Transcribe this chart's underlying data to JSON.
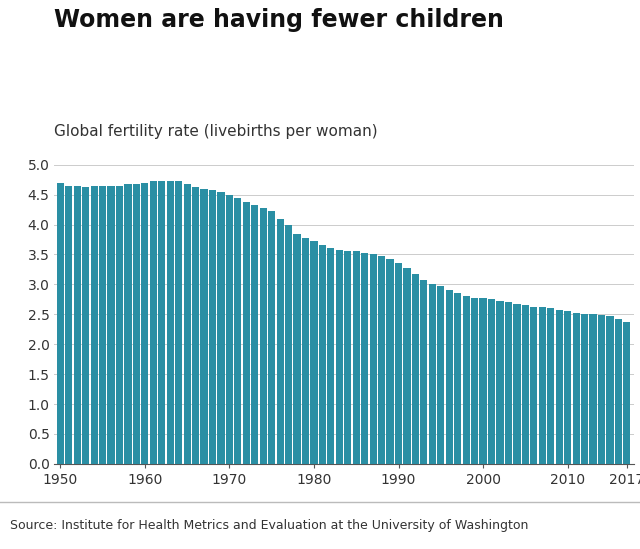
{
  "title": "Women are having fewer children",
  "subtitle": "Global fertility rate (livebirths per woman)",
  "source": "Source: Institute for Health Metrics and Evaluation at the University of Washington",
  "bar_color": "#2a8fa4",
  "background_color": "#ffffff",
  "footer_bg": "#e0e0e0",
  "ylim": [
    0,
    5.0
  ],
  "yticks": [
    0,
    0.5,
    1.0,
    1.5,
    2.0,
    2.5,
    3.0,
    3.5,
    4.0,
    4.5,
    5.0
  ],
  "years": [
    1950,
    1951,
    1952,
    1953,
    1954,
    1955,
    1956,
    1957,
    1958,
    1959,
    1960,
    1961,
    1962,
    1963,
    1964,
    1965,
    1966,
    1967,
    1968,
    1969,
    1970,
    1971,
    1972,
    1973,
    1974,
    1975,
    1976,
    1977,
    1978,
    1979,
    1980,
    1981,
    1982,
    1983,
    1984,
    1985,
    1986,
    1987,
    1988,
    1989,
    1990,
    1991,
    1992,
    1993,
    1994,
    1995,
    1996,
    1997,
    1998,
    1999,
    2000,
    2001,
    2002,
    2003,
    2004,
    2005,
    2006,
    2007,
    2008,
    2009,
    2010,
    2011,
    2012,
    2013,
    2014,
    2015,
    2016,
    2017
  ],
  "values": [
    4.7,
    4.65,
    4.65,
    4.63,
    4.65,
    4.65,
    4.65,
    4.65,
    4.68,
    4.68,
    4.7,
    4.72,
    4.73,
    4.73,
    4.72,
    4.68,
    4.62,
    4.6,
    4.58,
    4.55,
    4.5,
    4.45,
    4.38,
    4.32,
    4.28,
    4.22,
    4.1,
    4.0,
    3.85,
    3.78,
    3.72,
    3.65,
    3.6,
    3.58,
    3.56,
    3.55,
    3.52,
    3.5,
    3.48,
    3.43,
    3.35,
    3.28,
    3.18,
    3.08,
    3.0,
    2.98,
    2.9,
    2.85,
    2.8,
    2.78,
    2.78,
    2.75,
    2.72,
    2.7,
    2.68,
    2.65,
    2.63,
    2.62,
    2.6,
    2.57,
    2.55,
    2.52,
    2.5,
    2.5,
    2.48,
    2.47,
    2.42,
    2.37
  ],
  "xticks": [
    1950,
    1960,
    1970,
    1980,
    1990,
    2000,
    2010,
    2017
  ],
  "title_fontsize": 17,
  "subtitle_fontsize": 11,
  "tick_fontsize": 10,
  "source_fontsize": 9,
  "bbc_fontsize": 11
}
